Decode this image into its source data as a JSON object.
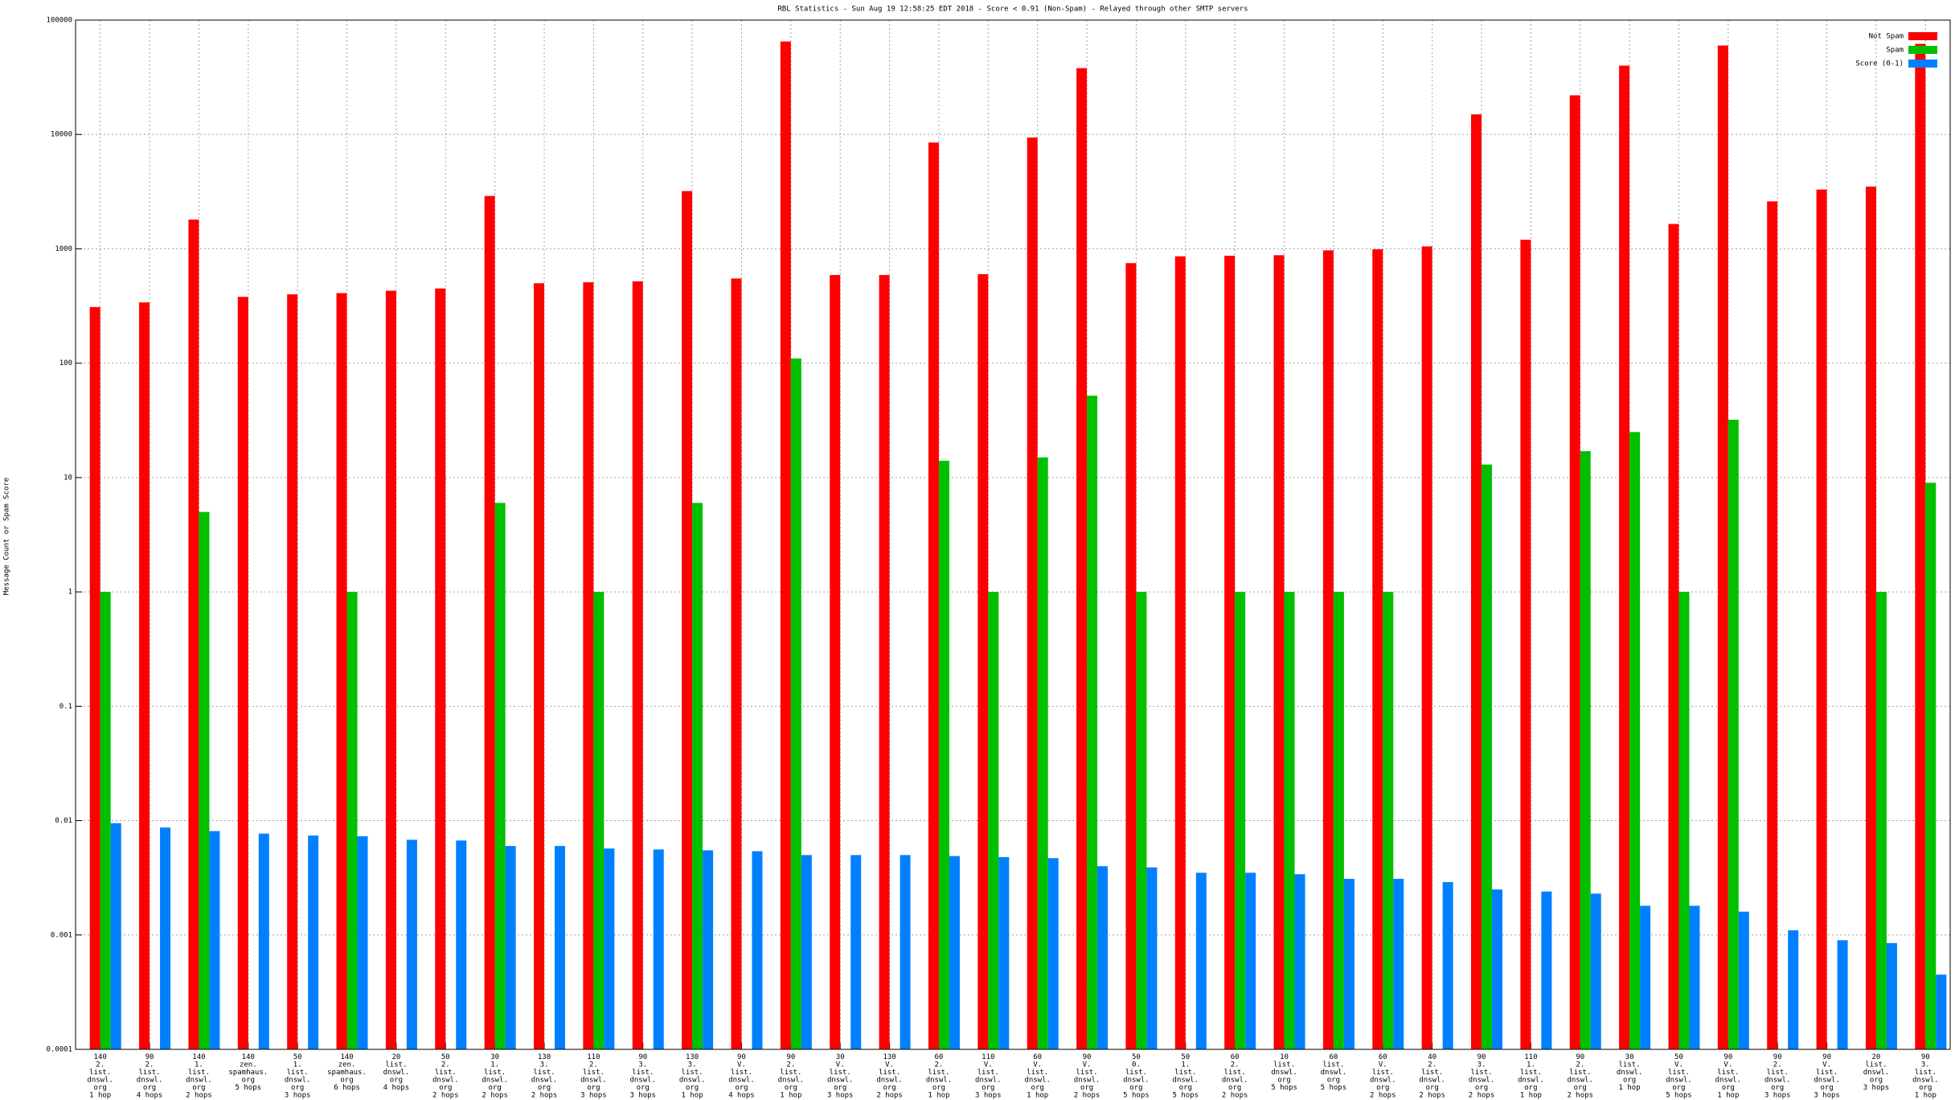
{
  "chart_data": {
    "type": "bar",
    "title": "RBL Statistics - Sun Aug 19 12:58:25 EDT 2018 - Score < 0.91 (Non-Spam) - Relayed through other SMTP servers",
    "y_label": "Message Count or Spam Score",
    "log": true,
    "grid": true,
    "legend": "upper right",
    "categories": [
      [
        "140",
        "2.",
        "list.",
        "dnswl.",
        "org",
        "1 hop"
      ],
      [
        "90",
        "2.",
        "list.",
        "dnswl.",
        "org",
        "4 hops"
      ],
      [
        "140",
        "1.",
        "list.",
        "dnswl.",
        "org",
        "2 hops"
      ],
      [
        "140",
        "zen.",
        "spamhaus.",
        "org",
        "5 hops"
      ],
      [
        "50",
        "1.",
        "list.",
        "dnswl.",
        "org",
        "3 hops"
      ],
      [
        "140",
        "zen.",
        "spamhaus.",
        "org",
        "6 hops"
      ],
      [
        "20",
        "list.",
        "dnswl.",
        "org",
        "4 hops"
      ],
      [
        "50",
        "2.",
        "list.",
        "dnswl.",
        "org",
        "2 hops"
      ],
      [
        "30",
        "1.",
        "list.",
        "dnswl.",
        "org",
        "2 hops"
      ],
      [
        "130",
        "3.",
        "list.",
        "dnswl.",
        "org",
        "2 hops"
      ],
      [
        "110",
        "2.",
        "list.",
        "dnswl.",
        "org",
        "3 hops"
      ],
      [
        "90",
        "3.",
        "list.",
        "dnswl.",
        "org",
        "3 hops"
      ],
      [
        "130",
        "3.",
        "list.",
        "dnswl.",
        "org",
        "1 hop"
      ],
      [
        "90",
        "V.",
        "list.",
        "dnswl.",
        "org",
        "4 hops"
      ],
      [
        "90",
        "2.",
        "list.",
        "dnswl.",
        "org",
        "1 hop"
      ],
      [
        "30",
        "V.",
        "list.",
        "dnswl.",
        "org",
        "3 hops"
      ],
      [
        "130",
        "V.",
        "list.",
        "dnswl.",
        "org",
        "2 hops"
      ],
      [
        "60",
        "2.",
        "list.",
        "dnswl.",
        "org",
        "1 hop"
      ],
      [
        "110",
        "V.",
        "list.",
        "dnswl.",
        "org",
        "3 hops"
      ],
      [
        "60",
        "V.",
        "list.",
        "dnswl.",
        "org",
        "1 hop"
      ],
      [
        "90",
        "V.",
        "list.",
        "dnswl.",
        "org",
        "2 hops"
      ],
      [
        "50",
        "0.",
        "list.",
        "dnswl.",
        "org",
        "5 hops"
      ],
      [
        "50",
        "1.",
        "list.",
        "dnswl.",
        "org",
        "5 hops"
      ],
      [
        "60",
        "2.",
        "list.",
        "dnswl.",
        "org",
        "2 hops"
      ],
      [
        "10",
        "list.",
        "dnswl.",
        "org",
        "5 hops"
      ],
      [
        "60",
        "list.",
        "dnswl.",
        "org",
        "5 hops"
      ],
      [
        "60",
        "V.",
        "list.",
        "dnswl.",
        "org",
        "2 hops"
      ],
      [
        "40",
        "2.",
        "list.",
        "dnswl.",
        "org",
        "2 hops"
      ],
      [
        "90",
        "3.",
        "list.",
        "dnswl.",
        "org",
        "2 hops"
      ],
      [
        "110",
        "1.",
        "list.",
        "dnswl.",
        "org",
        "1 hop"
      ],
      [
        "90",
        "2.",
        "list.",
        "dnswl.",
        "org",
        "2 hops"
      ],
      [
        "30",
        "list.",
        "dnswl.",
        "org",
        "1 hop"
      ],
      [
        "50",
        "V.",
        "list.",
        "dnswl.",
        "org",
        "5 hops"
      ],
      [
        "90",
        "V.",
        "list.",
        "dnswl.",
        "org",
        "1 hop"
      ],
      [
        "90",
        "2.",
        "list.",
        "dnswl.",
        "org",
        "3 hops"
      ],
      [
        "90",
        "V.",
        "list.",
        "dnswl.",
        "org",
        "3 hops"
      ],
      [
        "20",
        "list.",
        "dnswl.",
        "org",
        "3 hops"
      ],
      [
        "90",
        "3.",
        "list.",
        "dnswl.",
        "org",
        "1 hop"
      ]
    ],
    "series": [
      {
        "name": "Not Spam",
        "color": "#ff0000",
        "values": [
          310,
          340,
          1800,
          380,
          400,
          410,
          430,
          450,
          2900,
          500,
          510,
          520,
          3200,
          550,
          65000,
          590,
          590,
          8500,
          600,
          9400,
          38000,
          750,
          860,
          870,
          880,
          970,
          990,
          1050,
          15000,
          1200,
          22000,
          40000,
          1650,
          60000,
          2600,
          3300,
          3500,
          62000
        ]
      },
      {
        "name": "Spam",
        "color": "#00c000",
        "values": [
          1,
          null,
          5,
          null,
          null,
          1,
          null,
          null,
          6,
          null,
          1,
          null,
          6,
          null,
          110,
          null,
          null,
          14,
          1,
          15,
          52,
          1,
          null,
          1,
          1,
          1,
          1,
          null,
          13,
          null,
          17,
          25,
          1,
          32,
          null,
          null,
          1,
          9
        ]
      },
      {
        "name": "Score (0-1)",
        "color": "#0080ff",
        "values": [
          0.0095,
          0.0087,
          0.0081,
          0.0077,
          0.0074,
          0.0073,
          0.0068,
          0.0067,
          0.006,
          0.006,
          0.0057,
          0.0056,
          0.0055,
          0.0054,
          0.005,
          0.005,
          0.005,
          0.0049,
          0.0048,
          0.0047,
          0.004,
          0.0039,
          0.0035,
          0.0035,
          0.0034,
          0.0031,
          0.0031,
          0.0029,
          0.0025,
          0.0024,
          0.0023,
          0.0018,
          0.0018,
          0.0016,
          0.0011,
          0.0009,
          0.00085,
          0.00045
        ]
      }
    ],
    "ylim": [
      0.0001,
      100000
    ],
    "yticks": [
      0.0001,
      0.001,
      0.01,
      0.1,
      1,
      10,
      100,
      1000,
      10000,
      100000
    ]
  }
}
